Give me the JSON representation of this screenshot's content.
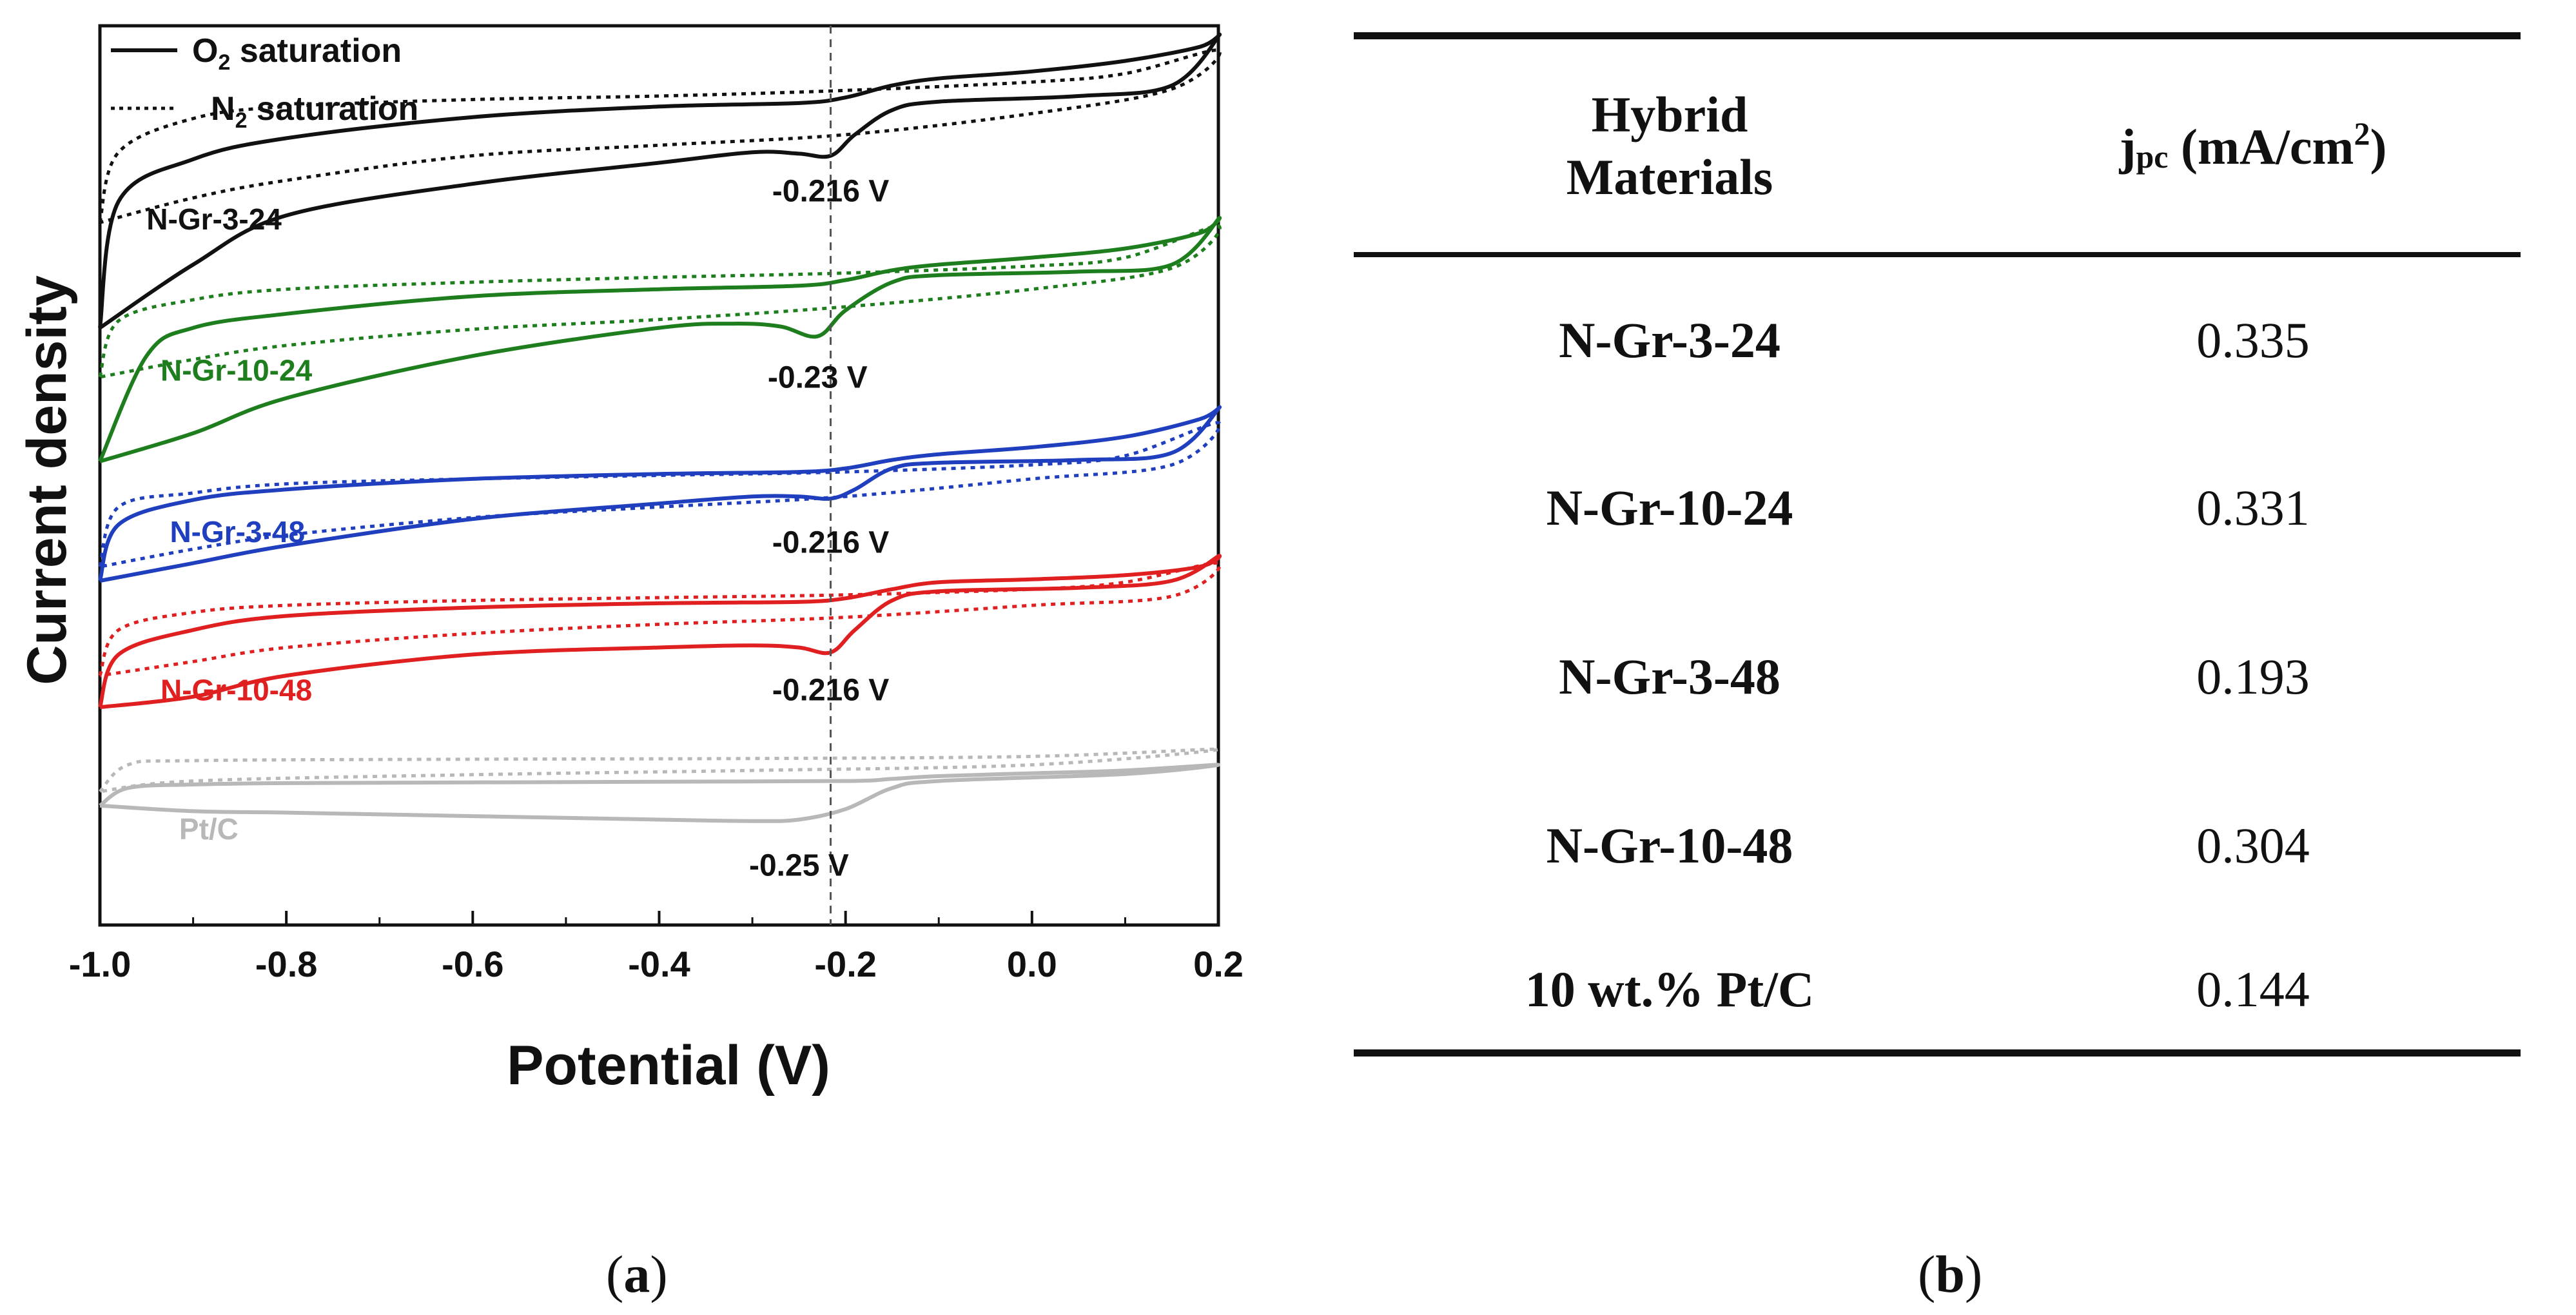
{
  "chart_data": {
    "type": "line",
    "title": "",
    "xlabel": "Potential (V)",
    "ylabel": "Current density",
    "xlim": [
      -1.0,
      0.2
    ],
    "xticks": [
      "-1.0",
      "-0.8",
      "-0.6",
      "-0.4",
      "-0.2",
      "0.0",
      "0.2"
    ],
    "y_units": "arbitrary (vertically offset curves, no y tick labels)",
    "ylim": [
      -3.0,
      9.8
    ],
    "grid": false,
    "legend": {
      "position": "top-left",
      "entries": [
        {
          "label_main": "O",
          "label_sub": "2",
          "label_rest": " saturation",
          "style": "solid"
        },
        {
          "label_main": "N",
          "label_sub": "2",
          "label_rest": " saturation",
          "style": "dotted"
        }
      ]
    },
    "reference_line": {
      "x": -0.216,
      "style": "dashed",
      "color": "#555555"
    },
    "series": [
      {
        "name": "N-Gr-3-24",
        "color": "#111111",
        "peak_label": "-0.216 V",
        "peak_potential": -0.216,
        "o2": {
          "upper": {
            "x": [
              -1.0,
              -0.98,
              -0.9,
              -0.8,
              -0.6,
              -0.4,
              -0.25,
              -0.2,
              -0.15,
              -0.1,
              0.0,
              0.1,
              0.18,
              0.2
            ],
            "y": [
              5.5,
              7.3,
              7.9,
              8.2,
              8.5,
              8.65,
              8.7,
              8.78,
              8.95,
              9.05,
              9.15,
              9.3,
              9.5,
              9.65
            ]
          },
          "lower": {
            "x": [
              0.2,
              0.15,
              0.05,
              -0.1,
              -0.15,
              -0.19,
              -0.216,
              -0.25,
              -0.3,
              -0.4,
              -0.6,
              -0.8,
              -0.9,
              -1.0
            ],
            "y": [
              9.6,
              8.95,
              8.8,
              8.72,
              8.6,
              8.25,
              7.95,
              7.98,
              8.0,
              7.85,
              7.55,
              7.1,
              6.4,
              5.5
            ]
          }
        },
        "n2": {
          "upper": {
            "x": [
              -1.0,
              -0.98,
              -0.9,
              -0.8,
              -0.6,
              -0.4,
              -0.2,
              0.0,
              0.1,
              0.2
            ],
            "y": [
              7.0,
              8.0,
              8.48,
              8.65,
              8.75,
              8.8,
              8.88,
              9.0,
              9.12,
              9.45
            ]
          },
          "lower": {
            "x": [
              0.2,
              0.15,
              0.0,
              -0.2,
              -0.4,
              -0.6,
              -0.8,
              -0.9,
              -1.0
            ],
            "y": [
              9.45,
              8.9,
              8.55,
              8.25,
              8.1,
              7.95,
              7.6,
              7.35,
              7.0
            ]
          }
        }
      },
      {
        "name": "N-Gr-10-24",
        "color": "#1e7e1e",
        "peak_label": "-0.23 V",
        "peak_potential": -0.23,
        "o2": {
          "upper": {
            "x": [
              -1.0,
              -0.95,
              -0.9,
              -0.8,
              -0.6,
              -0.4,
              -0.25,
              -0.2,
              -0.15,
              -0.1,
              0.0,
              0.1,
              0.18,
              0.2
            ],
            "y": [
              3.6,
              5.1,
              5.5,
              5.7,
              5.95,
              6.05,
              6.1,
              6.18,
              6.32,
              6.4,
              6.5,
              6.63,
              6.85,
              7.05
            ]
          },
          "lower": {
            "x": [
              0.2,
              0.15,
              0.05,
              -0.1,
              -0.15,
              -0.2,
              -0.23,
              -0.27,
              -0.32,
              -0.4,
              -0.6,
              -0.8,
              -0.9,
              -1.0
            ],
            "y": [
              6.95,
              6.4,
              6.3,
              6.25,
              6.15,
              5.75,
              5.38,
              5.52,
              5.56,
              5.5,
              5.1,
              4.5,
              4.0,
              3.6
            ]
          }
        },
        "n2": {
          "upper": {
            "x": [
              -1.0,
              -0.98,
              -0.9,
              -0.8,
              -0.6,
              -0.4,
              -0.2,
              0.0,
              0.1,
              0.2
            ],
            "y": [
              4.8,
              5.6,
              5.9,
              6.05,
              6.15,
              6.22,
              6.28,
              6.38,
              6.5,
              6.95
            ]
          },
          "lower": {
            "x": [
              0.2,
              0.15,
              0.0,
              -0.2,
              -0.4,
              -0.6,
              -0.8,
              -0.9,
              -1.0
            ],
            "y": [
              6.95,
              6.35,
              6.05,
              5.8,
              5.62,
              5.48,
              5.25,
              5.05,
              4.8
            ]
          }
        }
      },
      {
        "name": "N-Gr-3-48",
        "color": "#1f3fbf",
        "peak_label": "-0.216 V",
        "peak_potential": -0.216,
        "o2": {
          "upper": {
            "x": [
              -1.0,
              -0.98,
              -0.9,
              -0.8,
              -0.6,
              -0.4,
              -0.25,
              -0.2,
              -0.15,
              -0.1,
              0.0,
              0.1,
              0.18,
              0.2
            ],
            "y": [
              1.9,
              2.7,
              3.05,
              3.2,
              3.35,
              3.42,
              3.45,
              3.5,
              3.62,
              3.7,
              3.8,
              3.95,
              4.2,
              4.35
            ]
          },
          "lower": {
            "x": [
              0.2,
              0.15,
              0.05,
              -0.1,
              -0.15,
              -0.19,
              -0.216,
              -0.25,
              -0.3,
              -0.4,
              -0.6,
              -0.8,
              -0.9,
              -1.0
            ],
            "y": [
              4.3,
              3.72,
              3.62,
              3.58,
              3.5,
              3.2,
              3.07,
              3.1,
              3.1,
              3.0,
              2.78,
              2.4,
              2.15,
              1.9
            ]
          }
        },
        "n2": {
          "upper": {
            "x": [
              -1.0,
              -0.98,
              -0.9,
              -0.8,
              -0.6,
              -0.4,
              -0.2,
              0.0,
              0.1,
              0.2
            ],
            "y": [
              2.1,
              2.95,
              3.15,
              3.28,
              3.35,
              3.4,
              3.45,
              3.55,
              3.68,
              4.15
            ]
          },
          "lower": {
            "x": [
              0.2,
              0.15,
              0.0,
              -0.2,
              -0.4,
              -0.6,
              -0.8,
              -0.9,
              -1.0
            ],
            "y": [
              4.15,
              3.55,
              3.35,
              3.1,
              2.95,
              2.8,
              2.55,
              2.35,
              2.1
            ]
          }
        }
      },
      {
        "name": "N-Gr-10-48",
        "color": "#e02020",
        "peak_label": "-0.216 V",
        "peak_potential": -0.216,
        "o2": {
          "upper": {
            "x": [
              -1.0,
              -0.98,
              -0.9,
              -0.8,
              -0.6,
              -0.4,
              -0.25,
              -0.2,
              -0.15,
              -0.1,
              0.0,
              0.1,
              0.18,
              0.2
            ],
            "y": [
              0.1,
              0.85,
              1.2,
              1.4,
              1.52,
              1.58,
              1.6,
              1.65,
              1.78,
              1.88,
              1.92,
              1.98,
              2.1,
              2.25
            ]
          },
          "lower": {
            "x": [
              0.2,
              0.15,
              0.05,
              -0.1,
              -0.15,
              -0.19,
              -0.216,
              -0.25,
              -0.3,
              -0.4,
              -0.6,
              -0.8,
              -0.9,
              -1.0
            ],
            "y": [
              2.2,
              1.9,
              1.8,
              1.75,
              1.62,
              1.2,
              0.88,
              0.95,
              0.98,
              0.95,
              0.85,
              0.55,
              0.25,
              0.1
            ]
          }
        },
        "n2": {
          "upper": {
            "x": [
              -1.0,
              -0.98,
              -0.9,
              -0.8,
              -0.6,
              -0.4,
              -0.2,
              0.0,
              0.1,
              0.2
            ],
            "y": [
              0.55,
              1.2,
              1.45,
              1.55,
              1.62,
              1.66,
              1.7,
              1.78,
              1.88,
              2.15
            ]
          },
          "lower": {
            "x": [
              0.2,
              0.15,
              0.0,
              -0.2,
              -0.4,
              -0.6,
              -0.8,
              -0.9,
              -1.0
            ],
            "y": [
              2.15,
              1.68,
              1.55,
              1.38,
              1.28,
              1.15,
              0.95,
              0.75,
              0.55
            ]
          }
        }
      },
      {
        "name": "Pt/C",
        "color": "#b8b8b8",
        "peak_label": "-0.25 V",
        "peak_potential": -0.25,
        "o2": {
          "upper": {
            "x": [
              -1.0,
              -0.97,
              -0.9,
              -0.8,
              -0.6,
              -0.4,
              -0.2,
              -0.15,
              -0.1,
              0.0,
              0.1,
              0.2
            ],
            "y": [
              -1.3,
              -1.05,
              -1.0,
              -0.98,
              -0.97,
              -0.96,
              -0.95,
              -0.92,
              -0.88,
              -0.84,
              -0.8,
              -0.72
            ]
          },
          "lower": {
            "x": [
              0.2,
              0.1,
              -0.1,
              -0.15,
              -0.2,
              -0.25,
              -0.3,
              -0.4,
              -0.6,
              -0.8,
              -0.9,
              -1.0
            ],
            "y": [
              -0.76,
              -0.85,
              -0.95,
              -1.05,
              -1.35,
              -1.5,
              -1.52,
              -1.5,
              -1.45,
              -1.4,
              -1.38,
              -1.3
            ]
          }
        },
        "n2": {
          "upper": {
            "x": [
              -1.0,
              -0.97,
              -0.9,
              -0.6,
              -0.3,
              0.0,
              0.2
            ],
            "y": [
              -1.1,
              -0.72,
              -0.66,
              -0.64,
              -0.63,
              -0.6,
              -0.5
            ]
          },
          "lower": {
            "x": [
              0.2,
              0.0,
              -0.3,
              -0.6,
              -0.9,
              -1.0
            ],
            "y": [
              -0.6,
              -0.72,
              -0.8,
              -0.86,
              -0.95,
              -1.1
            ]
          }
        }
      }
    ]
  },
  "table": {
    "header_material": "Hybrid\nMaterials",
    "header_value_main": "j",
    "header_value_sub": "pc",
    "header_value_unit_a": " (mA/cm",
    "header_value_sup": "2",
    "header_value_unit_b": ")",
    "rows": [
      {
        "material": "N-Gr-3-24",
        "value": "0.335"
      },
      {
        "material": "N-Gr-10-24",
        "value": "0.331"
      },
      {
        "material": "N-Gr-3-48",
        "value": "0.193"
      },
      {
        "material": "N-Gr-10-48",
        "value": "0.304"
      },
      {
        "material": "10 wt.% Pt/C",
        "value": "0.144"
      }
    ]
  },
  "captions": {
    "a_open": "(",
    "a_letter": "a",
    "a_close": ")",
    "b_open": "(",
    "b_letter": "b",
    "b_close": ")"
  }
}
